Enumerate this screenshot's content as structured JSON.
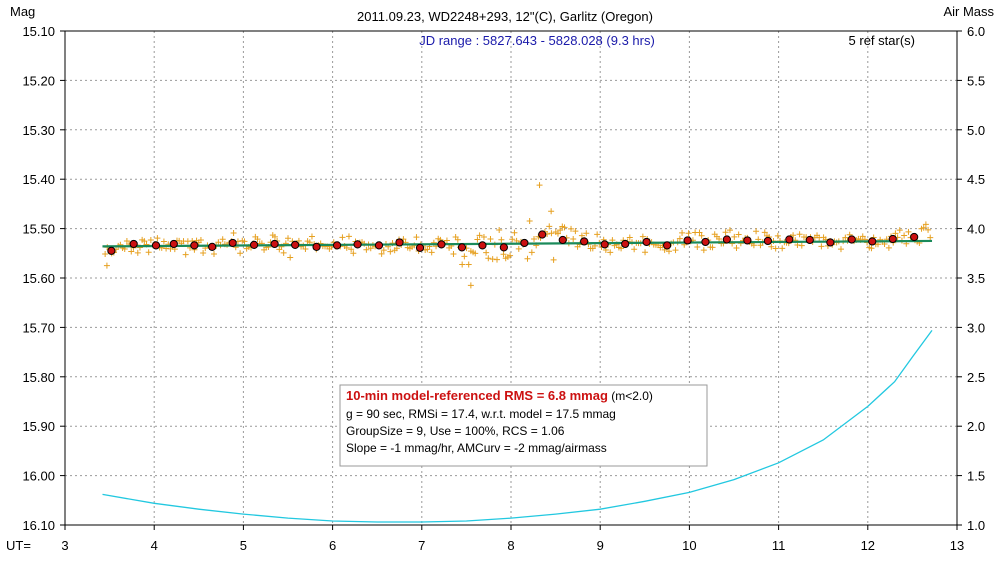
{
  "chart_data": {
    "type": "scatter",
    "title": "2011.09.23, WD2248+293, 12\"(C), Garlitz (Oregon)",
    "subtitle": "JD range : 5827.643 - 5828.028 (9.3 hrs)",
    "ref_stars": "5 ref star(s)",
    "left_axis_label": "Mag",
    "right_axis_label": "Air Mass",
    "x_axis_label": "UT=",
    "xlim": [
      3,
      13
    ],
    "ylim_left": [
      15.1,
      16.1
    ],
    "ylim_left_inverted": true,
    "ylim_right": [
      1.0,
      6.0
    ],
    "x_ticks": [
      3,
      4,
      5,
      6,
      7,
      8,
      9,
      10,
      11,
      12,
      13
    ],
    "y_left_ticks": [
      "15.10",
      "15.20",
      "15.30",
      "15.40",
      "15.50",
      "15.60",
      "15.70",
      "15.80",
      "15.90",
      "16.00",
      "16.10"
    ],
    "y_right_ticks": [
      "6.0",
      "5.5",
      "5.0",
      "4.5",
      "4.0",
      "3.5",
      "3.0",
      "2.5",
      "2.0",
      "1.5",
      "1.0"
    ],
    "grid": true,
    "colors": {
      "individual": "#e6a020",
      "group": "#cc1111",
      "model": "#1a8a5a",
      "airmass": "#22c8e0",
      "subtitle": "#1a1aaa",
      "rms_text": "#cc1111"
    },
    "group_means": {
      "x": [
        3.52,
        3.77,
        4.02,
        4.22,
        4.45,
        4.65,
        4.88,
        5.12,
        5.35,
        5.58,
        5.82,
        6.05,
        6.28,
        6.52,
        6.75,
        6.98,
        7.22,
        7.45,
        7.68,
        7.92,
        8.15,
        8.35,
        8.58,
        8.82,
        9.05,
        9.28,
        9.52,
        9.75,
        9.98,
        10.18,
        10.42,
        10.65,
        10.88,
        11.12,
        11.35,
        11.58,
        11.82,
        12.05,
        12.28,
        12.52
      ],
      "y": [
        15.545,
        15.531,
        15.534,
        15.531,
        15.534,
        15.537,
        15.529,
        15.533,
        15.531,
        15.533,
        15.537,
        15.534,
        15.532,
        15.534,
        15.528,
        15.539,
        15.532,
        15.538,
        15.534,
        15.538,
        15.529,
        15.512,
        15.523,
        15.526,
        15.532,
        15.531,
        15.527,
        15.534,
        15.524,
        15.527,
        15.522,
        15.524,
        15.525,
        15.522,
        15.523,
        15.528,
        15.522,
        15.526,
        15.521,
        15.517
      ]
    },
    "model_line": {
      "x": [
        3.42,
        12.72
      ],
      "y": [
        15.536,
        15.525
      ]
    },
    "airmass_curve": {
      "x": [
        3.42,
        4.0,
        4.5,
        5.0,
        5.5,
        6.0,
        6.5,
        7.0,
        7.5,
        8.0,
        8.5,
        9.0,
        9.5,
        10.0,
        10.5,
        11.0,
        11.5,
        12.0,
        12.3,
        12.5,
        12.72
      ],
      "y": [
        1.31,
        1.22,
        1.16,
        1.11,
        1.07,
        1.04,
        1.03,
        1.03,
        1.04,
        1.07,
        1.11,
        1.16,
        1.24,
        1.33,
        1.46,
        1.63,
        1.86,
        2.2,
        2.45,
        2.7,
        2.97
      ]
    },
    "stats_box": {
      "line1_bold": "10-min model-referenced RMS = 6.8 mmag",
      "line1_rest": " (m<2.0)",
      "line2": "g = 90 sec, RMSi = 17.4, w.r.t. model = 17.5 mmag",
      "line3": "GroupSize = 9, Use = 100%, RCS = 1.06",
      "line4": "Slope = -1 mmag/hr, AMCurv = -2 mmag/airmass"
    }
  }
}
